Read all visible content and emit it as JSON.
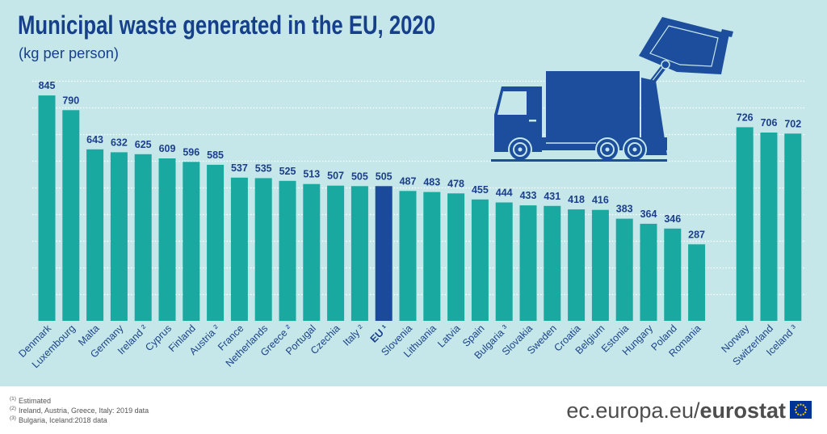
{
  "chart_data": {
    "type": "bar",
    "title": "Municipal waste generated in the EU, 2020",
    "subtitle": "(kg per person)",
    "xlabel": "",
    "ylabel": "",
    "categories": [
      "Denmark",
      "Luxembourg",
      "Malta",
      "Germany",
      "Ireland ²",
      "Cyprus",
      "Finland",
      "Austria ²",
      "France",
      "Netherlands",
      "Greece ²",
      "Portugal",
      "Czechia",
      "Italy ²",
      "EU ¹",
      "Slovenia",
      "Lithuania",
      "Latvia",
      "Spain",
      "Bulgaria ³",
      "Slovakia",
      "Sweden",
      "Croatia",
      "Belgium",
      "Estonia",
      "Hungary",
      "Poland",
      "Romania",
      "Norway",
      "Switzerland",
      "Iceland ³"
    ],
    "values": [
      845,
      790,
      643,
      632,
      625,
      609,
      596,
      585,
      537,
      535,
      525,
      513,
      507,
      505,
      505,
      487,
      483,
      478,
      455,
      444,
      433,
      431,
      418,
      416,
      383,
      364,
      346,
      287,
      726,
      706,
      702
    ],
    "highlight_index": 14,
    "ylim": [
      0,
      900
    ],
    "grid": true
  },
  "footnotes": [
    {
      "marker": "(1)",
      "text": "Estimated"
    },
    {
      "marker": "(2)",
      "text": "Ireland, Austria, Greece, Italy: 2019 data"
    },
    {
      "marker": "(3)",
      "text": "Bulgaria, Iceland:2018 data"
    }
  ],
  "footer": {
    "site": "ec.europa.eu/",
    "brand": "eurostat"
  },
  "icons": {
    "truck": "garbage-truck-icon",
    "flag": "eu-flag-icon"
  },
  "colors": {
    "background": "#c5e7e9",
    "bar": "#19a9a1",
    "highlight": "#1c4a9a",
    "text": "#1b3f8a",
    "truck": "#1d4e9d",
    "footer_text": "#4d4d4d",
    "flag_blue": "#003399",
    "flag_stars": "#ffcc00"
  }
}
